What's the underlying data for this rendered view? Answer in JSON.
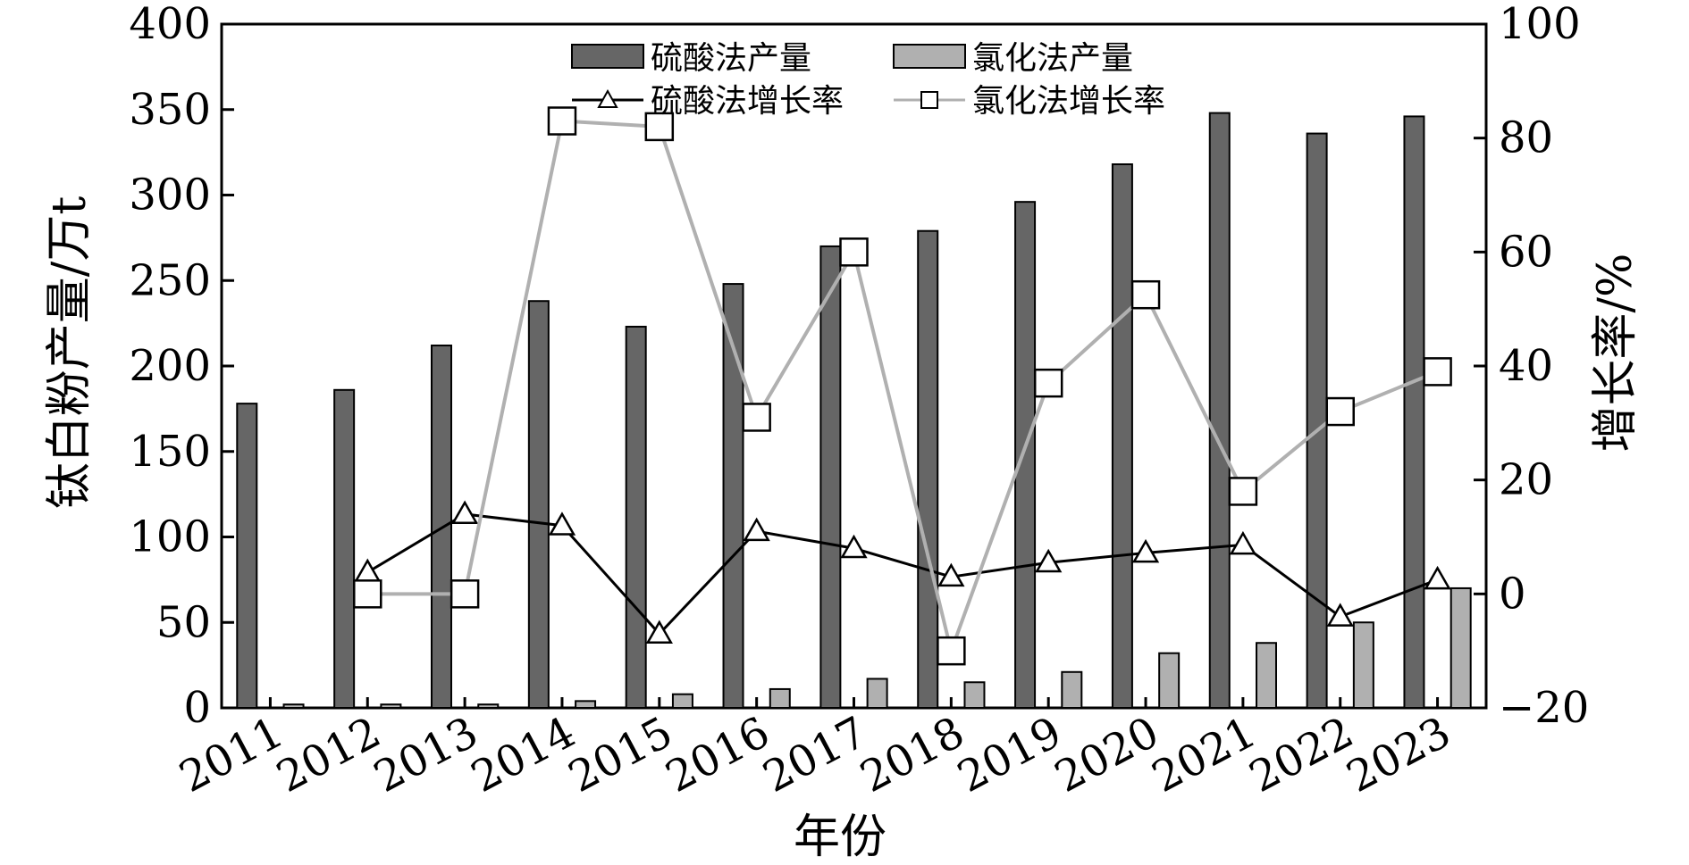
{
  "chart_data": {
    "type": "bar",
    "categories": [
      "2011",
      "2012",
      "2013",
      "2014",
      "2015",
      "2016",
      "2017",
      "2018",
      "2019",
      "2020",
      "2021",
      "2022",
      "2023"
    ],
    "xlabel": "年份",
    "ylabel": "钛白粉产量/万t",
    "y2label": "增长率/%",
    "ylim": [
      0,
      400
    ],
    "y2lim": [
      -20,
      100
    ],
    "yticks": [
      0,
      50,
      100,
      150,
      200,
      250,
      300,
      350,
      400
    ],
    "y2ticks": [
      -20,
      0,
      20,
      40,
      60,
      80,
      100
    ],
    "legend_position": "top-center",
    "grid": false,
    "series": [
      {
        "name": "硫酸法产量",
        "kind": "bar",
        "axis": "left",
        "color": "#666666",
        "values": [
          178,
          186,
          212,
          238,
          223,
          248,
          270,
          279,
          296,
          318,
          348,
          336,
          346
        ]
      },
      {
        "name": "氯化法产量",
        "kind": "bar",
        "axis": "left",
        "color": "#b0b0b0",
        "values": [
          2,
          2,
          2,
          4,
          8,
          11,
          17,
          15,
          21,
          32,
          38,
          50,
          70
        ]
      },
      {
        "name": "硫酸法增长率",
        "kind": "line",
        "axis": "right",
        "color": "#000000",
        "marker": "triangle",
        "values": [
          null,
          3.8,
          14,
          12,
          -7,
          11,
          8,
          3,
          5.5,
          7.2,
          8.6,
          -4,
          2.5
        ]
      },
      {
        "name": "氯化法增长率",
        "kind": "line",
        "axis": "right",
        "color": "#b0b0b0",
        "marker": "square",
        "values": [
          null,
          0,
          0,
          83,
          82,
          31,
          60,
          -10,
          37,
          52.5,
          18,
          32,
          39
        ]
      }
    ]
  }
}
